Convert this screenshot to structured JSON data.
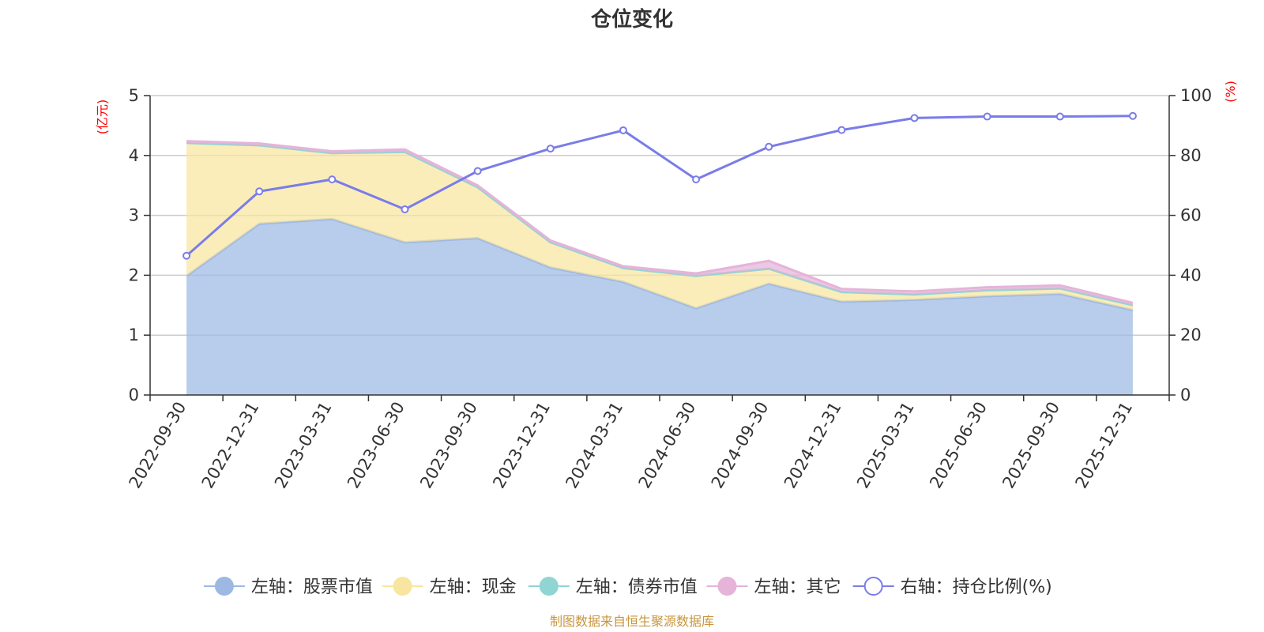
{
  "chart_data": {
    "type": "area",
    "title": "仓位变化",
    "left_unit": "(亿元)",
    "right_unit": "(%)",
    "categories": [
      "2022-09-30",
      "2022-12-31",
      "2023-03-31",
      "2023-06-30",
      "2023-09-30",
      "2023-12-31",
      "2024-03-31",
      "2024-06-30",
      "2024-09-30",
      "2024-12-31",
      "2025-03-31",
      "2025-06-30",
      "2025-09-30",
      "2025-12-31"
    ],
    "left_ylim": [
      0,
      5
    ],
    "left_ticks": [
      "0",
      "1",
      "2",
      "3",
      "4",
      "5"
    ],
    "right_ylim": [
      0,
      100
    ],
    "right_ticks": [
      "0",
      "20",
      "40",
      "60",
      "80",
      "100"
    ],
    "series": [
      {
        "name": "左轴：股票市值",
        "axis": "left",
        "stacked": true,
        "color": "#9db8e3",
        "values": [
          1.99,
          2.86,
          2.94,
          2.55,
          2.62,
          2.13,
          1.89,
          1.45,
          1.86,
          1.56,
          1.59,
          1.65,
          1.69,
          1.42
        ]
      },
      {
        "name": "左轴：现金",
        "axis": "left",
        "stacked": true,
        "color": "#f8e6a0",
        "values": [
          2.22,
          1.31,
          1.1,
          1.51,
          0.85,
          0.42,
          0.23,
          0.54,
          0.25,
          0.16,
          0.09,
          0.1,
          0.09,
          0.08
        ]
      },
      {
        "name": "左轴：债券市值",
        "axis": "left",
        "stacked": true,
        "color": "#91d4d4",
        "values": [
          0,
          0,
          0,
          0,
          0,
          0,
          0,
          0,
          0,
          0,
          0,
          0,
          0,
          0
        ]
      },
      {
        "name": "左轴：其它",
        "axis": "left",
        "stacked": true,
        "color": "#e6b3d9",
        "values": [
          0.03,
          0.03,
          0.03,
          0.04,
          0.03,
          0.03,
          0.03,
          0.04,
          0.13,
          0.05,
          0.05,
          0.05,
          0.05,
          0.04
        ]
      },
      {
        "name": "右轴：持仓比例(%)",
        "axis": "right",
        "stacked": false,
        "color": "#7a7ce8",
        "values": [
          46.5,
          68.0,
          72.0,
          62.0,
          74.8,
          82.3,
          88.4,
          72.0,
          82.9,
          88.5,
          92.5,
          93.0,
          93.0,
          93.2
        ]
      }
    ],
    "grid": true,
    "legend": "bottom-center"
  },
  "source_note": "制图数据来自恒生聚源数据库"
}
